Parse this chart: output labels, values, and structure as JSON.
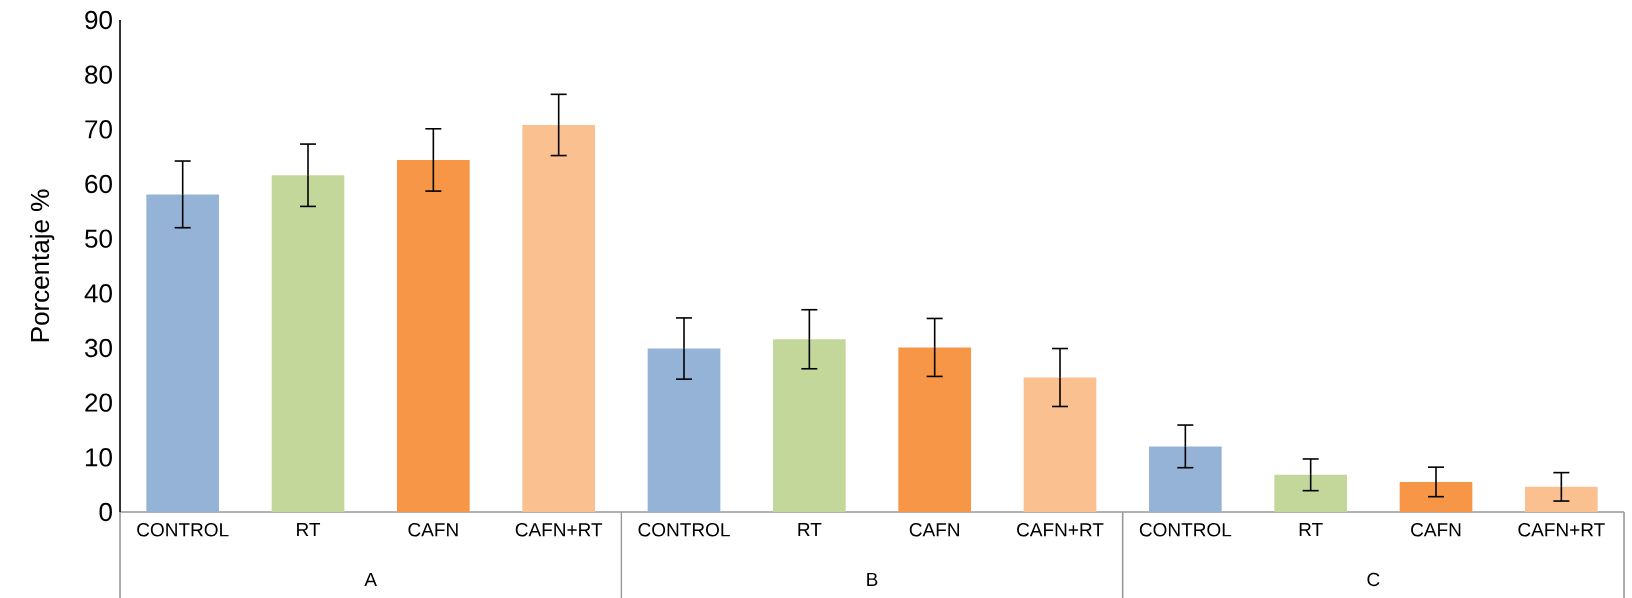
{
  "chart_data": {
    "type": "bar",
    "ylabel": "Porcentaje %",
    "categories": [
      "CONTROL",
      "RT",
      "CAFN",
      "CAFN+RT",
      "CONTROL",
      "RT",
      "CAFN",
      "CAFN+RT",
      "CONTROL",
      "RT",
      "CAFN",
      "CAFN+RT"
    ],
    "values": [
      58.1,
      61.6,
      64.4,
      70.8,
      29.9,
      31.6,
      30.1,
      24.6,
      12.0,
      6.8,
      5.5,
      4.6
    ],
    "errors": [
      6.1,
      5.7,
      5.7,
      5.6,
      5.6,
      5.4,
      5.3,
      5.3,
      3.9,
      2.9,
      2.7,
      2.6
    ],
    "colors": [
      "#95b3d7",
      "#c4d79b",
      "#f79646",
      "#fac090",
      "#95b3d7",
      "#c4d79b",
      "#f79646",
      "#fac090",
      "#95b3d7",
      "#c4d79b",
      "#f79646",
      "#fac090"
    ],
    "annotations": [
      "A",
      "B",
      "C"
    ],
    "ylim": [
      0,
      90
    ],
    "yticks": [
      0,
      10,
      20,
      30,
      40,
      50,
      60,
      70,
      80,
      90
    ]
  }
}
